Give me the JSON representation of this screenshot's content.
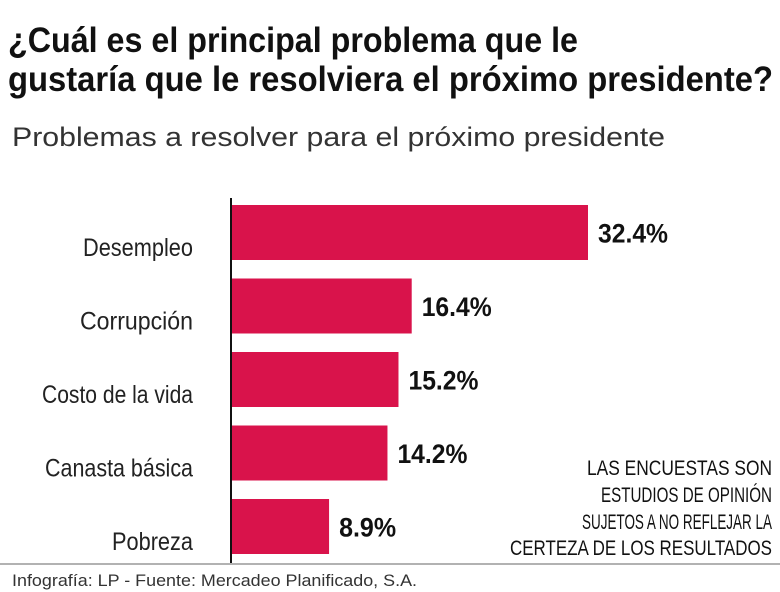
{
  "title_lines": [
    "¿Cuál es el principal problema que le",
    "gustaría que le resolviera el próximo presidente?"
  ],
  "chart_data": {
    "type": "bar",
    "orientation": "horizontal",
    "title": "Problemas a resolver para el próximo presidente",
    "categories": [
      "Desempleo",
      "Corrupción",
      "Costo de la vida",
      "Canasta básica",
      "Pobreza"
    ],
    "values": [
      32.4,
      16.4,
      15.2,
      14.2,
      8.9
    ],
    "value_labels": [
      "32.4%",
      "16.4%",
      "15.2%",
      "14.2%",
      "8.9%"
    ],
    "unit": "%",
    "grid": false,
    "bar_color": "#d9134b"
  },
  "note_lines": [
    "LAS ENCUESTAS SON",
    "ESTUDIOS DE OPINIÓN",
    "SUJETOS A NO REFLEJAR LA",
    "CERTEZA DE LOS RESULTADOS"
  ],
  "source": "Infografía: LP - Fuente: Mercadeo Planificado, S.A."
}
